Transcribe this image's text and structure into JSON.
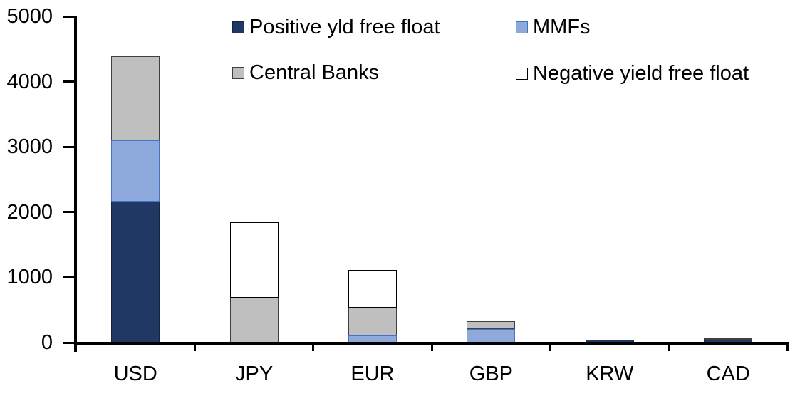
{
  "chart_data": {
    "type": "bar",
    "stacked": true,
    "title": "",
    "categories": [
      "USD",
      "JPY",
      "EUR",
      "GBP",
      "KRW",
      "CAD"
    ],
    "series": [
      {
        "name": "Positive yld free float",
        "color": "#203864",
        "border_color": "#16243D",
        "values": [
          2160,
          0,
          0,
          0,
          40,
          40
        ]
      },
      {
        "name": "MMFs",
        "color": "#8EA9DC",
        "border_color": "#4472C4",
        "values": [
          940,
          0,
          110,
          210,
          0,
          0
        ]
      },
      {
        "name": "Central Banks",
        "color": "#BFBFBF",
        "border_color": "#404040",
        "values": [
          1290,
          690,
          430,
          120,
          0,
          25
        ]
      },
      {
        "name": "Negative yield free float",
        "color": "#FFFFFF",
        "border_color": "#000000",
        "values": [
          0,
          1150,
          570,
          0,
          0,
          0
        ]
      }
    ],
    "totals": [
      4390,
      1840,
      1110,
      330,
      40,
      65
    ],
    "ylim": [
      0,
      5000
    ],
    "yticks": [
      0,
      1000,
      2000,
      3000,
      4000,
      5000
    ],
    "grid": false,
    "legend_position": "top",
    "legend_rows": [
      [
        "Positive yld free float",
        "MMFs"
      ],
      [
        "Central Banks",
        "Negative yield free float"
      ]
    ],
    "axis_color": "#000000",
    "text_color": "#000000"
  }
}
